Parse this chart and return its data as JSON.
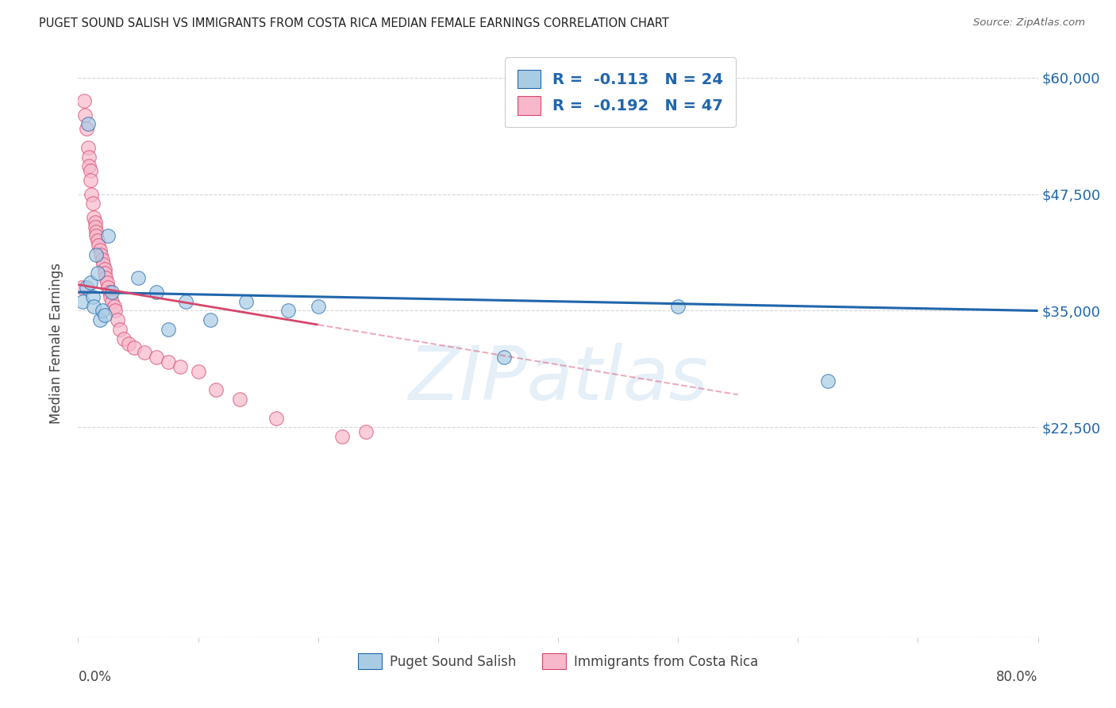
{
  "title": "PUGET SOUND SALISH VS IMMIGRANTS FROM COSTA RICA MEDIAN FEMALE EARNINGS CORRELATION CHART",
  "source": "Source: ZipAtlas.com",
  "ylabel": "Median Female Earnings",
  "y_ticks": [
    0,
    22500,
    35000,
    47500,
    60000
  ],
  "y_tick_labels": [
    "",
    "$22,500",
    "$35,000",
    "$47,500",
    "$60,000"
  ],
  "x_range": [
    0.0,
    0.8
  ],
  "y_range": [
    0,
    63000
  ],
  "legend_r1": "-0.113",
  "legend_n1": "24",
  "legend_r2": "-0.192",
  "legend_n2": "47",
  "color_blue": "#a8cce4",
  "color_pink": "#f7b8cb",
  "color_line_blue": "#2166ac",
  "color_line_pink": "#d6476b",
  "background": "#ffffff",
  "grid_color": "#cccccc",
  "watermark": "ZIPatlas",
  "blue_x": [
    0.004,
    0.007,
    0.008,
    0.01,
    0.012,
    0.013,
    0.015,
    0.016,
    0.018,
    0.02,
    0.022,
    0.025,
    0.028,
    0.05,
    0.065,
    0.075,
    0.09,
    0.11,
    0.14,
    0.175,
    0.2,
    0.355,
    0.5,
    0.625
  ],
  "blue_y": [
    36000,
    37500,
    55000,
    38000,
    36500,
    35500,
    41000,
    39000,
    34000,
    35000,
    34500,
    43000,
    37000,
    38500,
    37000,
    33000,
    36000,
    34000,
    36000,
    35000,
    35500,
    30000,
    35500,
    27500
  ],
  "pink_x": [
    0.003,
    0.005,
    0.006,
    0.007,
    0.008,
    0.009,
    0.009,
    0.01,
    0.01,
    0.011,
    0.012,
    0.013,
    0.014,
    0.014,
    0.015,
    0.015,
    0.016,
    0.017,
    0.018,
    0.019,
    0.02,
    0.021,
    0.022,
    0.022,
    0.023,
    0.024,
    0.025,
    0.026,
    0.027,
    0.028,
    0.03,
    0.031,
    0.033,
    0.035,
    0.038,
    0.042,
    0.047,
    0.055,
    0.065,
    0.075,
    0.085,
    0.1,
    0.115,
    0.135,
    0.165,
    0.22,
    0.24
  ],
  "pink_y": [
    37500,
    57500,
    56000,
    54500,
    52500,
    51500,
    50500,
    50000,
    49000,
    47500,
    46500,
    45000,
    44500,
    44000,
    43500,
    43000,
    42500,
    42000,
    41500,
    41000,
    40500,
    40000,
    39500,
    39000,
    38500,
    38000,
    37500,
    37000,
    36500,
    36000,
    35500,
    35000,
    34000,
    33000,
    32000,
    31500,
    31000,
    30500,
    30000,
    29500,
    29000,
    28500,
    26500,
    25500,
    23500,
    21500,
    22000
  ],
  "blue_line_x0": 0.0,
  "blue_line_y0": 37000,
  "blue_line_x1": 0.8,
  "blue_line_y1": 35000,
  "pink_line_x0": 0.0,
  "pink_line_y0": 37800,
  "pink_line_x1_solid": 0.2,
  "pink_line_y1_solid": 33500,
  "pink_line_x1_dash": 0.55,
  "pink_line_y1_dash": 26000
}
